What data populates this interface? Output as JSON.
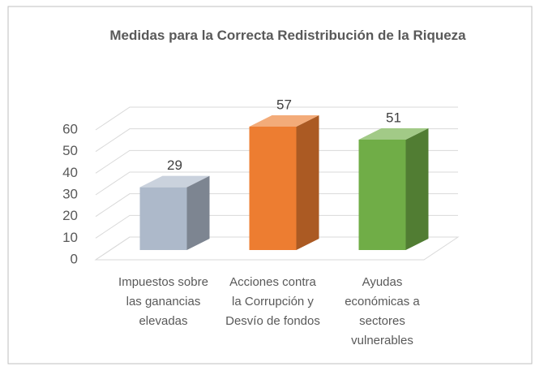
{
  "chart_data": {
    "type": "bar3d",
    "title": "Medidas para la Correcta Redistribución de la Riqueza",
    "categories": [
      "Impuestos sobre las ganancias elevadas",
      "Acciones contra la Corrupción y Desvío de fondos",
      "Ayudas económicas a sectores vulnerables"
    ],
    "values": [
      29,
      57,
      51
    ],
    "colors": [
      "#adb9ca",
      "#ed7d31",
      "#70ad47"
    ],
    "ylim": [
      0,
      60
    ],
    "yticks": [
      0,
      10,
      20,
      30,
      40,
      50,
      60
    ],
    "grid": true
  }
}
